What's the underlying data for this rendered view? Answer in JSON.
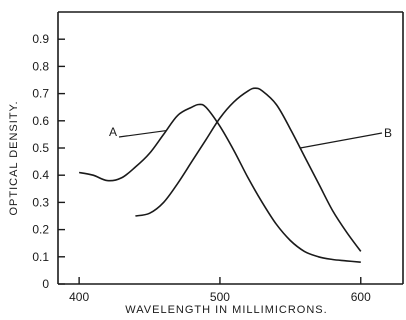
{
  "chart_data": {
    "type": "line",
    "xlabel": "WAVELENGTH   IN   MILLIMICRONS.",
    "ylabel": "OPTICAL   DENSITY.",
    "xlim": [
      385,
      630
    ],
    "ylim": [
      0,
      1.0
    ],
    "xticks": [
      400,
      500,
      600
    ],
    "xtick_labels": [
      "400",
      "500",
      "600"
    ],
    "yticks": [
      0,
      0.1,
      0.2,
      0.3,
      0.4,
      0.5,
      0.6,
      0.7,
      0.8,
      0.9
    ],
    "ytick_labels": [
      "0",
      "0.1",
      "0.2",
      "0.3",
      "0.4",
      "0.5",
      "0.6",
      "0.7",
      "0.8",
      "0.9"
    ],
    "series": [
      {
        "name": "A",
        "x": [
          400,
          410,
          420,
          430,
          440,
          450,
          460,
          470,
          480,
          485,
          490,
          500,
          510,
          520,
          530,
          540,
          550,
          560,
          570,
          580,
          590,
          600
        ],
        "y": [
          0.41,
          0.4,
          0.38,
          0.39,
          0.43,
          0.48,
          0.55,
          0.62,
          0.65,
          0.66,
          0.65,
          0.58,
          0.49,
          0.39,
          0.3,
          0.22,
          0.16,
          0.12,
          0.1,
          0.09,
          0.085,
          0.08
        ]
      },
      {
        "name": "B",
        "x": [
          440,
          450,
          460,
          470,
          480,
          490,
          500,
          510,
          520,
          525,
          530,
          540,
          550,
          560,
          570,
          580,
          590,
          600
        ],
        "y": [
          0.25,
          0.26,
          0.3,
          0.37,
          0.45,
          0.53,
          0.61,
          0.67,
          0.71,
          0.72,
          0.71,
          0.66,
          0.57,
          0.47,
          0.37,
          0.27,
          0.19,
          0.12
        ]
      }
    ]
  }
}
